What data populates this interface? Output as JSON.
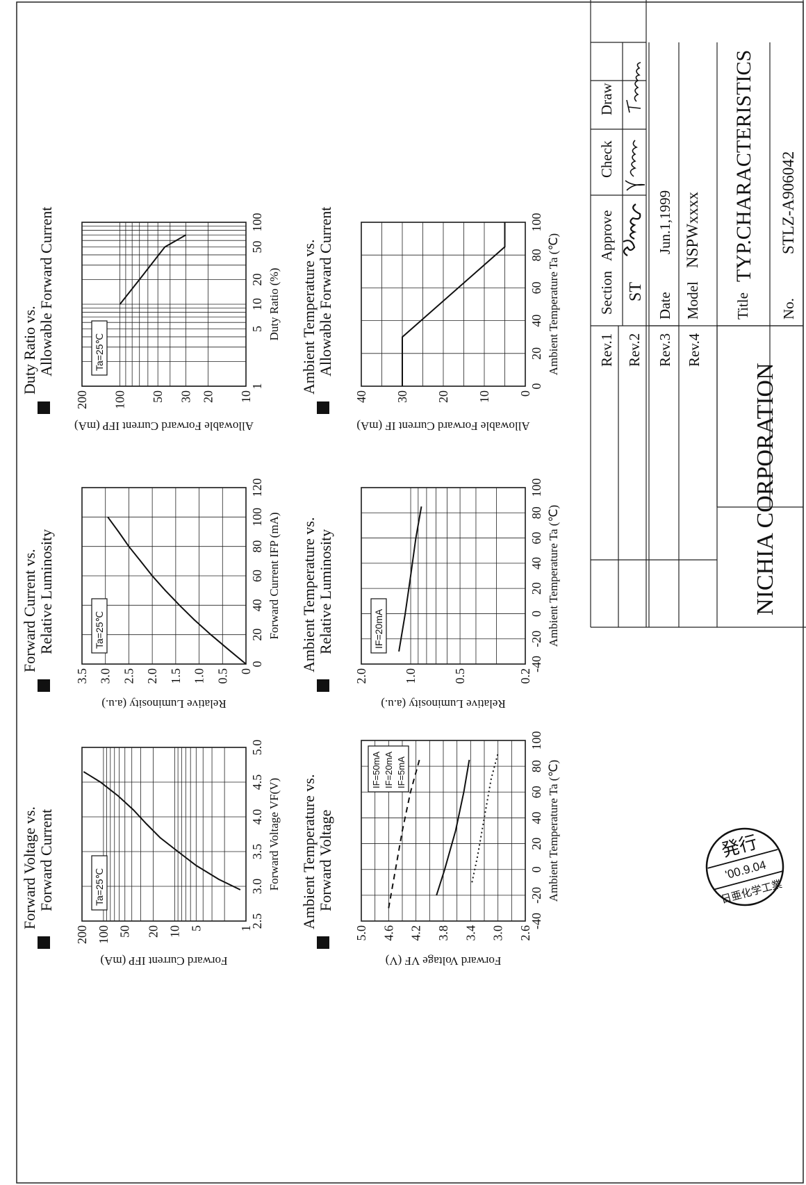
{
  "charts": [
    {
      "title_line1": "Forward Voltage vs.",
      "title_line2": "Forward Current",
      "xlabel": "Forward Voltage  VF(V)",
      "ylabel": "Forward Current  IFP (mA)",
      "x_ticks": [
        "2.5",
        "3.0",
        "3.5",
        "4.0",
        "4.5",
        "5.0"
      ],
      "y_ticks": [
        "1",
        "5",
        "10",
        "20",
        "50",
        "100",
        "200"
      ],
      "annotation": "Ta=25℃"
    },
    {
      "title_line1": "Forward Current vs.",
      "title_line2": "Relative Luminosity",
      "xlabel": "Forward Current  IFP (mA)",
      "ylabel": "Relative Luminosity  (a.u.)",
      "x_ticks": [
        "0",
        "20",
        "40",
        "60",
        "80",
        "100",
        "120"
      ],
      "y_ticks": [
        "0",
        "0.5",
        "1.0",
        "1.5",
        "2.0",
        "2.5",
        "3.0",
        "3.5"
      ],
      "annotation": "Ta=25℃"
    },
    {
      "title_line1": "Duty Ratio vs.",
      "title_line2": "Allowable Forward Current",
      "xlabel": "Duty Ratio (%)",
      "ylabel": "Allowable Forward Current IFP (mA)",
      "x_ticks": [
        "1",
        "5",
        "10",
        "20",
        "50",
        "100"
      ],
      "y_ticks": [
        "10",
        "20",
        "30",
        "50",
        "100",
        "200"
      ],
      "annotation": "Ta=25℃"
    },
    {
      "title_line1": "Ambient Temperature vs.",
      "title_line2": "Forward Voltage",
      "xlabel": "Ambient Temperature Ta (℃)",
      "ylabel": "Forward Voltage  VF (V)",
      "x_ticks": [
        "-40",
        "-20",
        "0",
        "20",
        "40",
        "60",
        "80",
        "100"
      ],
      "y_ticks": [
        "2.6",
        "3.0",
        "3.4",
        "3.8",
        "4.2",
        "4.6",
        "5.0"
      ],
      "legend": [
        "IF=50mA",
        "IF=20mA",
        "IF=5mA"
      ]
    },
    {
      "title_line1": "Ambient Temperature vs.",
      "title_line2": "Relative Luminosity",
      "xlabel": "Ambient Temperature Ta (℃)",
      "ylabel": "Relative Luminosity  (a.u.)",
      "x_ticks": [
        "-40",
        "-20",
        "0",
        "20",
        "40",
        "60",
        "80",
        "100"
      ],
      "y_ticks": [
        "0.2",
        "0.5",
        "1.0",
        "2.0"
      ],
      "annotation": "IF=20mA"
    },
    {
      "title_line1": "Ambient Temperature vs.",
      "title_line2": "Allowable Forward Current",
      "xlabel": "Ambient Temperature Ta (℃)",
      "ylabel": "Allowable Forward Current IF (mA)",
      "x_ticks": [
        "0",
        "20",
        "40",
        "60",
        "80",
        "100"
      ],
      "y_ticks": [
        "0",
        "10",
        "20",
        "30",
        "40"
      ]
    }
  ],
  "chart_data": [
    {
      "type": "line",
      "title": "Forward Voltage vs. Forward Current",
      "xlabel": "Forward Voltage VF(V)",
      "ylabel": "Forward Current IFP (mA)",
      "xlim": [
        2.5,
        5.0
      ],
      "ylim": [
        1,
        200
      ],
      "y_scale": "log",
      "series": [
        {
          "x": [
            2.95,
            3.1,
            3.3,
            3.5,
            3.7,
            3.9,
            4.1,
            4.3,
            4.5,
            4.65
          ],
          "y": [
            1.2,
            2.4,
            5,
            9,
            16,
            25,
            38,
            62,
            110,
            190
          ]
        }
      ]
    },
    {
      "type": "line",
      "title": "Forward Current vs. Relative Luminosity",
      "xlabel": "Forward Current IFP (mA)",
      "ylabel": "Relative Luminosity (a.u.)",
      "xlim": [
        0,
        120
      ],
      "ylim": [
        0,
        3.5
      ],
      "series": [
        {
          "x": [
            0,
            10,
            20,
            30,
            40,
            50,
            60,
            70,
            80,
            90,
            100
          ],
          "y": [
            0,
            0.38,
            0.75,
            1.1,
            1.42,
            1.72,
            2.0,
            2.25,
            2.5,
            2.72,
            2.95
          ]
        }
      ]
    },
    {
      "type": "line",
      "title": "Duty Ratio vs. Allowable Forward Current",
      "xlabel": "Duty Ratio (%)",
      "ylabel": "Allowable Forward Current IFP (mA)",
      "xlim": [
        1,
        100
      ],
      "ylim": [
        10,
        200
      ],
      "x_scale": "log",
      "y_scale": "log",
      "series": [
        {
          "x": [
            10,
            20,
            50,
            70
          ],
          "y": [
            100,
            70,
            44,
            30
          ]
        }
      ]
    },
    {
      "type": "line",
      "title": "Ambient Temperature vs. Forward Voltage",
      "xlabel": "Ambient Temperature Ta (℃)",
      "ylabel": "Forward Voltage VF (V)",
      "xlim": [
        -40,
        100
      ],
      "ylim": [
        2.6,
        5.0
      ],
      "series": [
        {
          "name": "IF=50mA",
          "x": [
            -30,
            0,
            30,
            60,
            85
          ],
          "y": [
            4.6,
            4.5,
            4.4,
            4.28,
            4.15
          ]
        },
        {
          "name": "IF=20mA",
          "x": [
            -20,
            0,
            30,
            60,
            85
          ],
          "y": [
            3.9,
            3.78,
            3.62,
            3.5,
            3.42
          ]
        },
        {
          "name": "IF=5mA",
          "x": [
            -10,
            10,
            40,
            70,
            90
          ],
          "y": [
            3.38,
            3.3,
            3.2,
            3.1,
            3.0
          ]
        }
      ]
    },
    {
      "type": "line",
      "title": "Ambient Temperature vs. Relative Luminosity",
      "xlabel": "Ambient Temperature Ta (℃)",
      "ylabel": "Relative Luminosity (a.u.)",
      "xlim": [
        -40,
        100
      ],
      "ylim": [
        0.2,
        2.0
      ],
      "y_scale": "log",
      "series": [
        {
          "name": "IF=20mA",
          "x": [
            -30,
            0,
            30,
            60,
            85
          ],
          "y": [
            1.18,
            1.08,
            1.0,
            0.93,
            0.86
          ]
        }
      ]
    },
    {
      "type": "line",
      "title": "Ambient Temperature vs. Allowable Forward Current",
      "xlabel": "Ambient Temperature Ta (℃)",
      "ylabel": "Allowable Forward Current IF (mA)",
      "xlim": [
        0,
        100
      ],
      "ylim": [
        0,
        40
      ],
      "series": [
        {
          "x": [
            0,
            30,
            85,
            100
          ],
          "y": [
            30,
            30,
            5,
            5
          ]
        }
      ]
    }
  ],
  "title_block": {
    "headers": [
      "Section",
      "Approve",
      "Check",
      "Draw"
    ],
    "section_value": "ST",
    "signatures": [
      "Bando",
      "Yamasaki",
      "Tamura"
    ],
    "rev_labels": [
      "Rev.1",
      "Rev.2",
      "Rev.3",
      "Rev.4"
    ],
    "date_label": "Date",
    "date_value": "Jun.1,1999",
    "model_label": "Model",
    "model_value": "NSPWxxxx",
    "title_label": "Title",
    "title_value": "TYP.CHARACTERISTICS",
    "no_label": "No.",
    "no_value": "STLZ-A906042",
    "company": "NICHIA CORPORATION"
  },
  "stamp": {
    "issued": "発行",
    "date": "'00.9.04",
    "company_jp": "日亜化学工業"
  }
}
